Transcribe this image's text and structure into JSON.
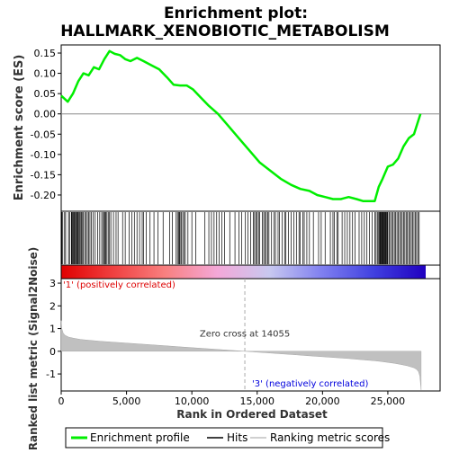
{
  "chart_data": {
    "type": "line",
    "title_line1": "Enrichment plot:",
    "title_line2": "HALLMARK_XENOBIOTIC_METABOLISM",
    "top_panel": {
      "ylabel": "Enrichment score (ES)",
      "ylim": [
        -0.24,
        0.17
      ],
      "yticks": [
        "0.15",
        "0.10",
        "0.05",
        "0.00",
        "-0.05",
        "-0.10",
        "-0.15",
        "-0.20"
      ],
      "ytick_values": [
        0.15,
        0.1,
        0.05,
        0.0,
        -0.05,
        -0.1,
        -0.15,
        -0.2
      ],
      "curve_color": "#00ee00",
      "es_curve": {
        "x": [
          0,
          500,
          900,
          1300,
          1700,
          2100,
          2500,
          2900,
          3300,
          3700,
          4100,
          4500,
          4900,
          5300,
          5800,
          6300,
          6900,
          7500,
          8100,
          8600,
          9100,
          9600,
          10100,
          10700,
          11300,
          12000,
          12800,
          13600,
          14400,
          15200,
          16000,
          16800,
          17600,
          18300,
          19000,
          19600,
          20200,
          20800,
          21400,
          22000,
          22600,
          23100,
          23600,
          24000,
          24300,
          24600,
          25000,
          25400,
          25800,
          26200,
          26600,
          27000,
          27300,
          27500
        ],
        "y": [
          0.045,
          0.03,
          0.05,
          0.08,
          0.1,
          0.095,
          0.115,
          0.11,
          0.135,
          0.155,
          0.148,
          0.145,
          0.135,
          0.13,
          0.138,
          0.13,
          0.12,
          0.11,
          0.09,
          0.072,
          0.07,
          0.07,
          0.06,
          0.04,
          0.02,
          0.0,
          -0.03,
          -0.06,
          -0.09,
          -0.12,
          -0.14,
          -0.16,
          -0.175,
          -0.185,
          -0.19,
          -0.2,
          -0.205,
          -0.21,
          -0.21,
          -0.205,
          -0.21,
          -0.215,
          -0.215,
          -0.215,
          -0.18,
          -0.16,
          -0.13,
          -0.125,
          -0.11,
          -0.08,
          -0.06,
          -0.05,
          -0.02,
          0.0
        ]
      }
    },
    "hits_panel": {
      "hit_color": "#000000",
      "hit_positions": [
        50,
        120,
        260,
        340,
        560,
        640,
        780,
        820,
        860,
        920,
        980,
        1040,
        1100,
        1180,
        1220,
        1280,
        1350,
        1420,
        1500,
        1550,
        1600,
        1700,
        1800,
        1900,
        2000,
        2100,
        2200,
        2300,
        2450,
        2600,
        2800,
        2950,
        3100,
        3200,
        3300,
        3350,
        3420,
        3500,
        3600,
        3700,
        3800,
        4000,
        4200,
        4350,
        4700,
        4900,
        5200,
        5400,
        5600,
        5800,
        6000,
        6200,
        6300,
        6500,
        6800,
        7100,
        7400,
        7800,
        8300,
        8500,
        8800,
        8900,
        9000,
        9050,
        9100,
        9200,
        9300,
        9400,
        9500,
        9700,
        10000,
        10300,
        11000,
        11300,
        11500,
        11700,
        11900,
        12100,
        12300,
        12500,
        12900,
        13300,
        13600,
        13800,
        14100,
        14300,
        14500,
        14700,
        14800,
        14900,
        15000,
        15100,
        15200,
        15400,
        15500,
        15600,
        15700,
        15800,
        15900,
        16100,
        16300,
        16400,
        16600,
        16700,
        16900,
        17100,
        17200,
        17400,
        17600,
        17800,
        18000,
        18200,
        18300,
        18500,
        18600,
        18800,
        19000,
        19300,
        19700,
        19900,
        20200,
        20600,
        20800,
        20900,
        21100,
        21200,
        21500,
        21700,
        21900,
        22100,
        22300,
        22500,
        22800,
        23000,
        23200,
        23400,
        23600,
        23800,
        24000,
        24100,
        24200,
        24300,
        24350,
        24400,
        24450,
        24500,
        24550,
        24600,
        24650,
        24700,
        24750,
        24800,
        24850,
        24900,
        24950,
        25000,
        25100,
        25200,
        25300,
        25400,
        25500,
        25600,
        25700,
        25800,
        25900,
        26000,
        26100,
        26200,
        26300,
        26400,
        26500,
        26600,
        26700,
        26800,
        26900,
        27000,
        27100,
        27200,
        27300,
        27400
      ]
    },
    "rank_panel": {
      "ylabel": "Ranked list metric (Signal2Noise)",
      "ylim": [
        -1.75,
        3.2
      ],
      "yticks": [
        "3",
        "2",
        "1",
        "0",
        "-1"
      ],
      "ytick_values": [
        3,
        2,
        1,
        0,
        -1
      ],
      "fill_color": "#c0c0c0",
      "metric_curve": {
        "x": [
          0,
          50,
          150,
          300,
          600,
          1000,
          1500,
          2000,
          3000,
          4000,
          5000,
          6000,
          7000,
          8000,
          9000,
          10000,
          11000,
          12000,
          13000,
          14055,
          15000,
          16000,
          17000,
          18000,
          19000,
          20000,
          21000,
          22000,
          23000,
          24000,
          24500,
          25000,
          25500,
          26000,
          26500,
          27000,
          27200,
          27350,
          27450,
          27550
        ],
        "y": [
          1.35,
          1.0,
          0.8,
          0.7,
          0.62,
          0.57,
          0.52,
          0.49,
          0.44,
          0.4,
          0.36,
          0.32,
          0.28,
          0.24,
          0.2,
          0.16,
          0.12,
          0.08,
          0.04,
          0.0,
          -0.04,
          -0.08,
          -0.12,
          -0.16,
          -0.2,
          -0.24,
          -0.28,
          -0.32,
          -0.37,
          -0.42,
          -0.45,
          -0.49,
          -0.53,
          -0.58,
          -0.64,
          -0.73,
          -0.8,
          -0.9,
          -1.1,
          -1.7
        ]
      },
      "zero_cross_label": "Zero cross at 14055",
      "zero_cross_x": 14055,
      "label_positive": "'1' (positively correlated)",
      "label_negative": "'3' (negatively correlated)",
      "label_positive_color": "#dd0000",
      "label_negative_color": "#0000dd"
    },
    "colorbar": {
      "stops": [
        "#e00000",
        "#f04040",
        "#f88080",
        "#f4a8d8",
        "#c8c8f0",
        "#8080f0",
        "#4040e0",
        "#2000c0"
      ]
    },
    "xaxis": {
      "xlabel": "Rank in Ordered Dataset",
      "xlim": [
        0,
        29000
      ],
      "xticks": [
        "0",
        "5,000",
        "10,000",
        "15,000",
        "20,000",
        "25,000"
      ],
      "xtick_values": [
        0,
        5000,
        10000,
        15000,
        20000,
        25000
      ],
      "total_ranks": 27550
    },
    "legend": {
      "placement": "bottom",
      "items": [
        {
          "label": "Enrichment profile",
          "color": "#00ee00",
          "kind": "thick-line"
        },
        {
          "label": "Hits",
          "color": "#000000",
          "kind": "line"
        },
        {
          "label": "Ranking metric scores",
          "color": "#c0c0c0",
          "kind": "line"
        }
      ]
    }
  }
}
